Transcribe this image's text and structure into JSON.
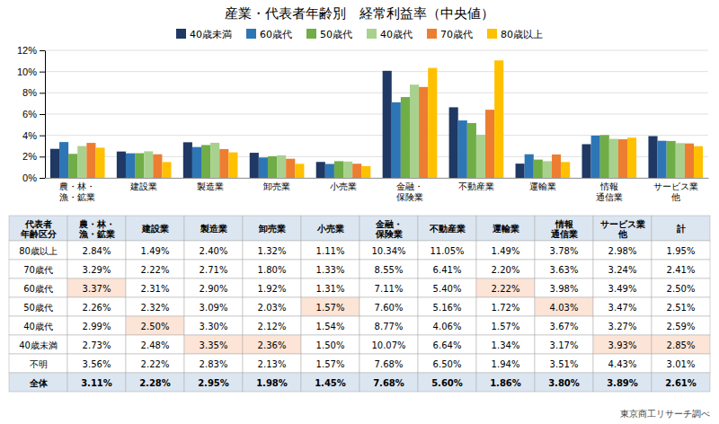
{
  "chart_data": {
    "type": "bar",
    "title": "産業・代表者年齢別　経常利益率（中央値）",
    "categories": [
      "農・林・\n漁・鉱業",
      "建設業",
      "製造業",
      "卸売業",
      "小売業",
      "金融・\n保険業",
      "不動産業",
      "運輸業",
      "情報\n通信業",
      "サービス業\n他"
    ],
    "series": [
      {
        "name": "40歳未満",
        "color": "#1f3864",
        "values": [
          2.73,
          2.48,
          3.35,
          2.36,
          1.5,
          10.07,
          6.64,
          1.34,
          3.17,
          3.93
        ]
      },
      {
        "name": "60歳代",
        "color": "#2e75b6",
        "values": [
          3.37,
          2.31,
          2.9,
          1.92,
          1.31,
          7.11,
          5.4,
          2.22,
          3.98,
          3.49
        ]
      },
      {
        "name": "50歳代",
        "color": "#70ad47",
        "values": [
          2.26,
          2.32,
          3.09,
          2.03,
          1.57,
          7.6,
          5.16,
          1.72,
          4.03,
          3.47
        ]
      },
      {
        "name": "40歳代",
        "color": "#a9d18e",
        "values": [
          2.99,
          2.5,
          3.3,
          2.12,
          1.54,
          8.77,
          4.06,
          1.57,
          3.67,
          3.27
        ]
      },
      {
        "name": "70歳代",
        "color": "#ed7d31",
        "values": [
          3.29,
          2.22,
          2.71,
          1.8,
          1.33,
          8.55,
          6.41,
          2.2,
          3.63,
          3.24
        ]
      },
      {
        "name": "80歳以上",
        "color": "#ffc000",
        "values": [
          2.84,
          1.49,
          2.4,
          1.32,
          1.11,
          10.34,
          11.05,
          1.49,
          3.78,
          2.98
        ]
      }
    ],
    "ylim": [
      0,
      12
    ],
    "yticks": [
      {
        "value": 0,
        "label": "0%"
      },
      {
        "value": 2,
        "label": "2%"
      },
      {
        "value": 4,
        "label": "4%"
      },
      {
        "value": 6,
        "label": "6%"
      },
      {
        "value": 8,
        "label": "8%"
      },
      {
        "value": 10,
        "label": "10%"
      },
      {
        "value": 12,
        "label": "12%"
      }
    ],
    "grid": true,
    "legend": "top",
    "table": {
      "columns": [
        "代表者\n年齢区分",
        "農・林・\n漁・鉱業",
        "建設業",
        "製造業",
        "卸売業",
        "小売業",
        "金融・\n保険業",
        "不動産業",
        "運輸業",
        "情報\n通信業",
        "サービス業\n他",
        "計"
      ],
      "highlight_color": "#fce4d6",
      "rows": [
        {
          "label": "80歳以上",
          "values": [
            2.84,
            1.49,
            2.4,
            1.32,
            1.11,
            10.34,
            11.05,
            1.49,
            3.78,
            2.98,
            1.95
          ],
          "value_labels": [
            "2.84%",
            "1.49%",
            "2.40%",
            "1.32%",
            "1.11%",
            "10.34%",
            "11.05%",
            "1.49%",
            "3.78%",
            "2.98%",
            "1.95%"
          ],
          "highlight": []
        },
        {
          "label": "70歳代",
          "values": [
            3.29,
            2.22,
            2.71,
            1.8,
            1.33,
            8.55,
            6.41,
            2.2,
            3.63,
            3.24,
            2.41
          ],
          "value_labels": [
            "3.29%",
            "2.22%",
            "2.71%",
            "1.80%",
            "1.33%",
            "8.55%",
            "6.41%",
            "2.20%",
            "3.63%",
            "3.24%",
            "2.41%"
          ],
          "highlight": []
        },
        {
          "label": "60歳代",
          "values": [
            3.37,
            2.31,
            2.9,
            1.92,
            1.31,
            7.11,
            5.4,
            2.22,
            3.98,
            3.49,
            2.5
          ],
          "value_labels": [
            "3.37%",
            "2.31%",
            "2.90%",
            "1.92%",
            "1.31%",
            "7.11%",
            "5.40%",
            "2.22%",
            "3.98%",
            "3.49%",
            "2.50%"
          ],
          "highlight": [
            "農・林・\n漁・鉱業",
            "運輸業"
          ]
        },
        {
          "label": "50歳代",
          "values": [
            2.26,
            2.32,
            3.09,
            2.03,
            1.57,
            7.6,
            5.16,
            1.72,
            4.03,
            3.47,
            2.51
          ],
          "value_labels": [
            "2.26%",
            "2.32%",
            "3.09%",
            "2.03%",
            "1.57%",
            "7.60%",
            "5.16%",
            "1.72%",
            "4.03%",
            "3.47%",
            "2.51%"
          ],
          "highlight": [
            "小売業",
            "情報\n通信業"
          ]
        },
        {
          "label": "40歳代",
          "values": [
            2.99,
            2.5,
            3.3,
            2.12,
            1.54,
            8.77,
            4.06,
            1.57,
            3.67,
            3.27,
            2.59
          ],
          "value_labels": [
            "2.99%",
            "2.50%",
            "3.30%",
            "2.12%",
            "1.54%",
            "8.77%",
            "4.06%",
            "1.57%",
            "3.67%",
            "3.27%",
            "2.59%"
          ],
          "highlight": [
            "建設業"
          ]
        },
        {
          "label": "40歳未満",
          "values": [
            2.73,
            2.48,
            3.35,
            2.36,
            1.5,
            10.07,
            6.64,
            1.34,
            3.17,
            3.93,
            2.85
          ],
          "value_labels": [
            "2.73%",
            "2.48%",
            "3.35%",
            "2.36%",
            "1.50%",
            "10.07%",
            "6.64%",
            "1.34%",
            "3.17%",
            "3.93%",
            "2.85%"
          ],
          "highlight": [
            "製造業",
            "卸売業",
            "サービス業\n他",
            "計"
          ]
        },
        {
          "label": "不明",
          "values": [
            3.56,
            2.22,
            2.83,
            2.13,
            1.57,
            7.68,
            6.5,
            1.94,
            3.51,
            4.43,
            3.01
          ],
          "value_labels": [
            "3.56%",
            "2.22%",
            "2.83%",
            "2.13%",
            "1.57%",
            "7.68%",
            "6.50%",
            "1.94%",
            "3.51%",
            "4.43%",
            "3.01%"
          ],
          "highlight": []
        },
        {
          "label": "全体",
          "values": [
            3.11,
            2.28,
            2.95,
            1.98,
            1.45,
            7.68,
            5.6,
            1.86,
            3.8,
            3.89,
            2.61
          ],
          "value_labels": [
            "3.11%",
            "2.28%",
            "2.95%",
            "1.98%",
            "1.45%",
            "7.68%",
            "5.60%",
            "1.86%",
            "3.80%",
            "3.89%",
            "2.61%"
          ],
          "highlight": []
        }
      ]
    },
    "annotations": [
      "東京商工リサーチ調べ"
    ]
  }
}
